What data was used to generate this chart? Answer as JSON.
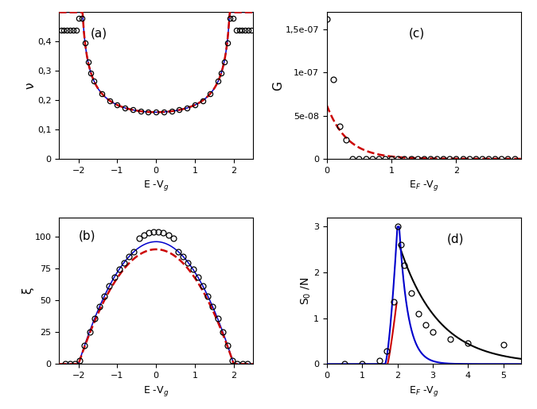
{
  "panel_a": {
    "label": "(a)",
    "xlabel": "E -V$_g$",
    "ylabel": "ν",
    "xlim": [
      -2.5,
      2.5
    ],
    "ylim": [
      0,
      0.5
    ],
    "yticks": [
      0,
      0.1,
      0.2,
      0.3,
      0.4
    ],
    "ytick_labels": [
      "0",
      "0,1",
      "0,2",
      "0,3",
      "0,4"
    ],
    "xticks": [
      -2,
      -1,
      0,
      1,
      2
    ]
  },
  "panel_b": {
    "label": "(b)",
    "xlabel": "E -V$_g$",
    "ylabel": "ξ",
    "xlim": [
      -2.5,
      2.5
    ],
    "ylim": [
      0,
      115
    ],
    "yticks": [
      0,
      25,
      50,
      75,
      100
    ],
    "xticks": [
      -2,
      -1,
      0,
      1,
      2
    ]
  },
  "panel_c": {
    "label": "(c)",
    "xlabel": "E$_F$ -V$_g$",
    "ylabel": "G",
    "xlim": [
      0,
      3.0
    ],
    "ylim": [
      0,
      1.7e-07
    ],
    "yticks": [
      0,
      5e-08,
      1e-07,
      1.5e-07
    ],
    "ytick_labels": [
      "0",
      "5e-08",
      "1e-07",
      "1,5e-07"
    ],
    "xticks": [
      0,
      1,
      2
    ]
  },
  "panel_d": {
    "label": "(d)",
    "xlabel": "E$_F$ -V$_g$",
    "ylabel": "S$_0$ /N",
    "xlim": [
      0,
      5.5
    ],
    "ylim": [
      0,
      3.2
    ],
    "yticks": [
      0,
      1,
      2,
      3
    ],
    "xticks": [
      0,
      1,
      2,
      3,
      4,
      5
    ]
  },
  "colors": {
    "blue_line": "#0000cc",
    "red_dashed": "#cc0000",
    "black_circles": "#000000",
    "black_line": "#000000"
  }
}
